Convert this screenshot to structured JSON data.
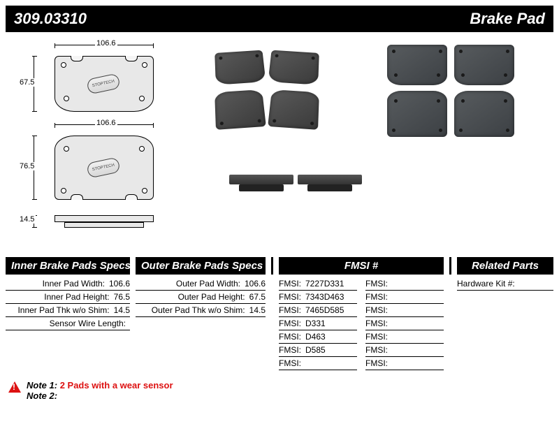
{
  "header": {
    "part_number": "309.03310",
    "category": "Brake Pad"
  },
  "diagram": {
    "top_width": "106.6",
    "top_height": "67.5",
    "bottom_width": "106.6",
    "bottom_height": "76.5",
    "thickness": "14.5",
    "logo_text": "STOPTECH"
  },
  "specs": {
    "inner": {
      "title": "Inner Brake Pads Specs",
      "rows": [
        {
          "label": "Inner Pad Width:",
          "value": "106.6"
        },
        {
          "label": "Inner Pad Height:",
          "value": "76.5"
        },
        {
          "label": "Inner Pad Thk w/o Shim:",
          "value": "14.5"
        },
        {
          "label": "Sensor Wire Length:",
          "value": ""
        }
      ]
    },
    "outer": {
      "title": "Outer Brake Pads Specs",
      "rows": [
        {
          "label": "Outer Pad Width:",
          "value": "106.6"
        },
        {
          "label": "Outer Pad Height:",
          "value": "67.5"
        },
        {
          "label": "Outer Pad Thk w/o Shim:",
          "value": "14.5"
        }
      ]
    },
    "fmsi": {
      "title": "FMSI #",
      "col1": [
        {
          "label": "FMSI:",
          "value": "7227D331"
        },
        {
          "label": "FMSI:",
          "value": "7343D463"
        },
        {
          "label": "FMSI:",
          "value": "7465D585"
        },
        {
          "label": "FMSI:",
          "value": "D331"
        },
        {
          "label": "FMSI:",
          "value": "D463"
        },
        {
          "label": "FMSI:",
          "value": "D585"
        },
        {
          "label": "FMSI:",
          "value": ""
        }
      ],
      "col2": [
        {
          "label": "FMSI:",
          "value": ""
        },
        {
          "label": "FMSI:",
          "value": ""
        },
        {
          "label": "FMSI:",
          "value": ""
        },
        {
          "label": "FMSI:",
          "value": ""
        },
        {
          "label": "FMSI:",
          "value": ""
        },
        {
          "label": "FMSI:",
          "value": ""
        },
        {
          "label": "FMSI:",
          "value": ""
        }
      ]
    },
    "related": {
      "title": "Related Parts",
      "rows": [
        {
          "label": "Hardware Kit #:",
          "value": ""
        }
      ]
    }
  },
  "notes": {
    "note1_label": "Note 1:",
    "note1_text": "2 Pads with a wear sensor",
    "note2_label": "Note 2:",
    "note2_text": ""
  },
  "colors": {
    "header_bg": "#000000",
    "header_fg": "#ffffff",
    "note_red": "#d11",
    "rule": "#000000"
  }
}
